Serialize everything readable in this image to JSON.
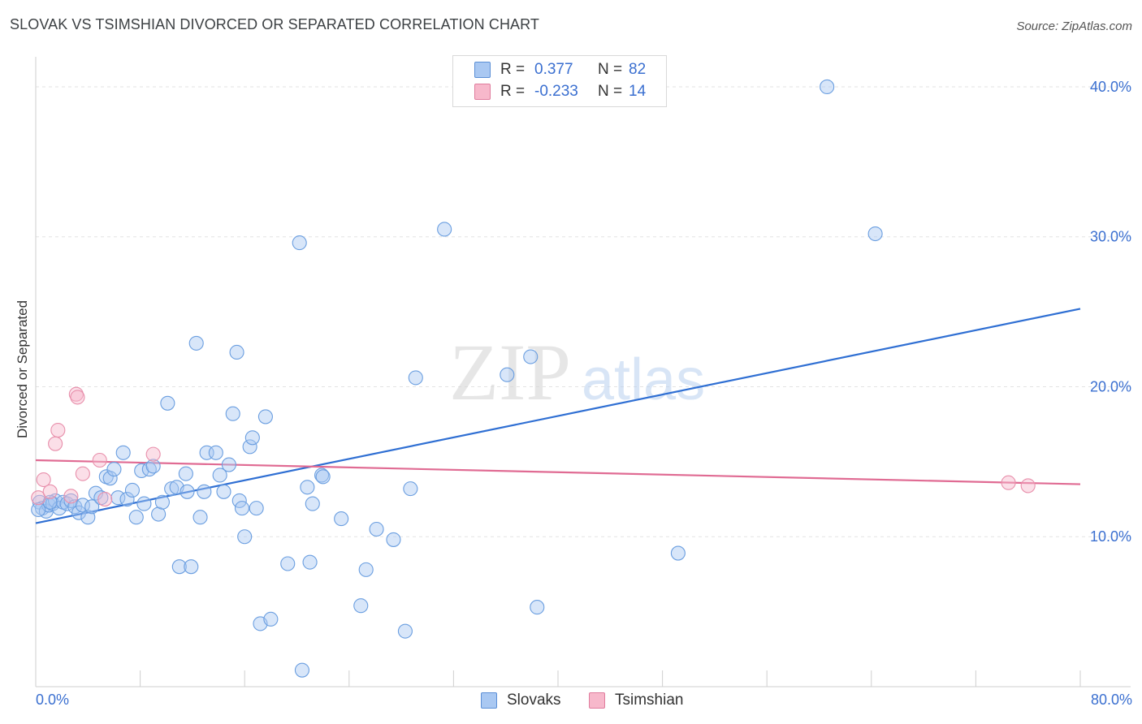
{
  "header": {
    "title": "SLOVAK VS TSIMSHIAN DIVORCED OR SEPARATED CORRELATION CHART",
    "source": "Source: ZipAtlas.com"
  },
  "watermark": {
    "zip": "ZIP",
    "atlas": "atlas"
  },
  "legend_top": {
    "rows": [
      {
        "r_label": "R =",
        "r_value": "0.377",
        "n_label": "N =",
        "n_value": "82",
        "color": "#a9c8f2",
        "border": "#5b8fd6"
      },
      {
        "r_label": "R =",
        "r_value": "-0.233",
        "n_label": "N =",
        "n_value": "14",
        "color": "#f7b8cb",
        "border": "#e07c9d"
      }
    ]
  },
  "legend_bottom": {
    "slovaks": "Slovaks",
    "tsimshian": "Tsimshian"
  },
  "axis": {
    "x_min_label": "0.0%",
    "x_max_label": "80.0%"
  },
  "colors": {
    "slovak_fill": "#a9c8f2",
    "slovak_stroke": "#6a9ee0",
    "slovak_line": "#2f6fd3",
    "tsimshian_fill": "#f7b8cb",
    "tsimshian_stroke": "#e88fab",
    "tsimshian_line": "#e06b93",
    "grid": "#e3e3e3",
    "tick_label": "#3a6fd0"
  },
  "chart_data": {
    "type": "scatter",
    "title": "SLOVAK VS TSIMSHIAN DIVORCED OR SEPARATED CORRELATION CHART",
    "xlabel": "",
    "ylabel": "Divorced or Separated",
    "xlim": [
      0,
      80
    ],
    "ylim": [
      0,
      42
    ],
    "y_ticks": [
      10,
      20,
      30,
      40
    ],
    "y_tick_labels": [
      "10.0%",
      "20.0%",
      "30.0%",
      "40.0%"
    ],
    "x_ticks": [
      0,
      8,
      16,
      24,
      32,
      40,
      48,
      56,
      64,
      72,
      80
    ],
    "series": [
      {
        "name": "Slovaks",
        "R": 0.377,
        "N": 82,
        "trend": {
          "x": [
            0,
            80
          ],
          "y": [
            10.9,
            25.2
          ]
        },
        "points": [
          [
            0.3,
            12.3
          ],
          [
            0.5,
            11.9
          ],
          [
            0.8,
            11.7
          ],
          [
            1.0,
            12.1
          ],
          [
            1.3,
            12.2
          ],
          [
            1.5,
            12.4
          ],
          [
            1.8,
            11.9
          ],
          [
            2.1,
            12.3
          ],
          [
            2.4,
            12.2
          ],
          [
            2.7,
            12.4
          ],
          [
            3.0,
            12.0
          ],
          [
            3.3,
            11.6
          ],
          [
            3.6,
            12.1
          ],
          [
            4.0,
            11.3
          ],
          [
            4.3,
            12.0
          ],
          [
            4.6,
            12.9
          ],
          [
            5.0,
            12.6
          ],
          [
            5.4,
            14.0
          ],
          [
            5.7,
            13.9
          ],
          [
            6.0,
            14.5
          ],
          [
            6.3,
            12.6
          ],
          [
            6.7,
            15.6
          ],
          [
            7.0,
            12.5
          ],
          [
            7.4,
            13.1
          ],
          [
            7.7,
            11.3
          ],
          [
            8.1,
            14.4
          ],
          [
            8.3,
            12.2
          ],
          [
            8.7,
            14.5
          ],
          [
            9.0,
            14.7
          ],
          [
            9.4,
            11.5
          ],
          [
            9.7,
            12.3
          ],
          [
            10.1,
            18.9
          ],
          [
            10.4,
            13.2
          ],
          [
            10.8,
            13.3
          ],
          [
            11.0,
            8.0
          ],
          [
            11.5,
            14.2
          ],
          [
            11.6,
            13.0
          ],
          [
            11.9,
            8.0
          ],
          [
            12.3,
            22.9
          ],
          [
            12.6,
            11.3
          ],
          [
            12.9,
            13.0
          ],
          [
            13.1,
            15.6
          ],
          [
            13.8,
            15.6
          ],
          [
            14.1,
            14.1
          ],
          [
            14.4,
            13.0
          ],
          [
            14.8,
            14.8
          ],
          [
            15.1,
            18.2
          ],
          [
            15.4,
            22.3
          ],
          [
            15.6,
            12.4
          ],
          [
            15.8,
            11.9
          ],
          [
            16.0,
            10.0
          ],
          [
            16.4,
            16.0
          ],
          [
            16.6,
            16.6
          ],
          [
            16.9,
            11.9
          ],
          [
            17.2,
            4.2
          ],
          [
            17.6,
            18.0
          ],
          [
            18.0,
            4.5
          ],
          [
            19.3,
            8.2
          ],
          [
            20.2,
            29.6
          ],
          [
            20.4,
            1.1
          ],
          [
            20.8,
            13.3
          ],
          [
            21.0,
            8.3
          ],
          [
            21.2,
            12.2
          ],
          [
            21.9,
            14.1
          ],
          [
            22.0,
            14.0
          ],
          [
            23.4,
            11.2
          ],
          [
            24.9,
            5.4
          ],
          [
            25.3,
            7.8
          ],
          [
            26.1,
            10.5
          ],
          [
            27.4,
            9.8
          ],
          [
            28.3,
            3.7
          ],
          [
            28.7,
            13.2
          ],
          [
            29.1,
            20.6
          ],
          [
            31.3,
            30.5
          ],
          [
            36.1,
            20.8
          ],
          [
            37.9,
            22.0
          ],
          [
            38.4,
            5.3
          ],
          [
            49.2,
            8.9
          ],
          [
            60.6,
            40.0
          ],
          [
            64.3,
            30.2
          ],
          [
            0.2,
            11.8
          ],
          [
            1.1,
            12.3
          ]
        ]
      },
      {
        "name": "Tsimshian",
        "R": -0.233,
        "N": 14,
        "trend": {
          "x": [
            0,
            80
          ],
          "y": [
            15.1,
            13.5
          ]
        },
        "points": [
          [
            0.2,
            12.6
          ],
          [
            0.6,
            13.8
          ],
          [
            1.1,
            13.0
          ],
          [
            1.5,
            16.2
          ],
          [
            1.7,
            17.1
          ],
          [
            2.7,
            12.7
          ],
          [
            3.1,
            19.5
          ],
          [
            3.2,
            19.3
          ],
          [
            3.6,
            14.2
          ],
          [
            4.9,
            15.1
          ],
          [
            5.3,
            12.5
          ],
          [
            9.0,
            15.5
          ],
          [
            74.5,
            13.6
          ],
          [
            76.0,
            13.4
          ]
        ]
      }
    ]
  }
}
